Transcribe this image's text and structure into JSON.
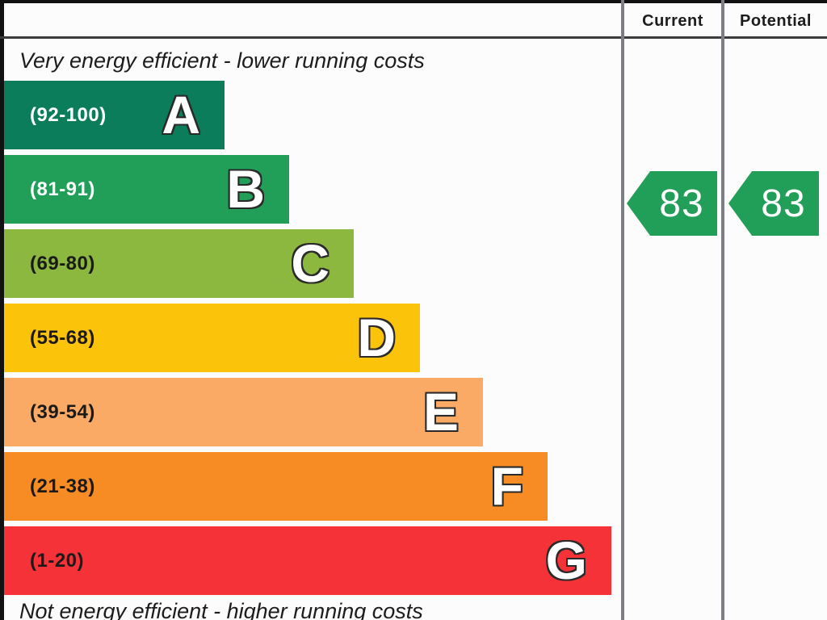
{
  "chart_data": {
    "type": "bar",
    "subtype": "epc-energy-efficiency-rating",
    "title_top": "Very energy efficient - lower running costs",
    "title_bottom": "Not energy efficient - higher running costs",
    "column_headers": [
      "Current",
      "Potential"
    ],
    "bands": [
      {
        "letter": "A",
        "range_label": "(92-100)",
        "min": 92,
        "max": 100,
        "color": "#0b7d5b",
        "label_color": "#ffffff"
      },
      {
        "letter": "B",
        "range_label": "(81-91)",
        "min": 81,
        "max": 91,
        "color": "#219e58",
        "label_color": "#ffffff"
      },
      {
        "letter": "C",
        "range_label": "(69-80)",
        "min": 69,
        "max": 80,
        "color": "#8cb83f",
        "label_color": "#1a1a1a"
      },
      {
        "letter": "D",
        "range_label": "(55-68)",
        "min": 55,
        "max": 68,
        "color": "#fcc30b",
        "label_color": "#1a1a1a"
      },
      {
        "letter": "E",
        "range_label": "(39-54)",
        "min": 39,
        "max": 54,
        "color": "#faaa65",
        "label_color": "#1a1a1a"
      },
      {
        "letter": "F",
        "range_label": "(21-38)",
        "min": 21,
        "max": 38,
        "color": "#f78b24",
        "label_color": "#1a1a1a"
      },
      {
        "letter": "G",
        "range_label": "(1-20)",
        "min": 1,
        "max": 20,
        "color": "#f43237",
        "label_color": "#1a1a1a"
      }
    ],
    "current": {
      "value": 83,
      "band": "B",
      "arrow_color": "#219e58",
      "value_color": "#ffffff"
    },
    "potential": {
      "value": 83,
      "band": "B",
      "arrow_color": "#219e58",
      "value_color": "#ffffff"
    }
  }
}
